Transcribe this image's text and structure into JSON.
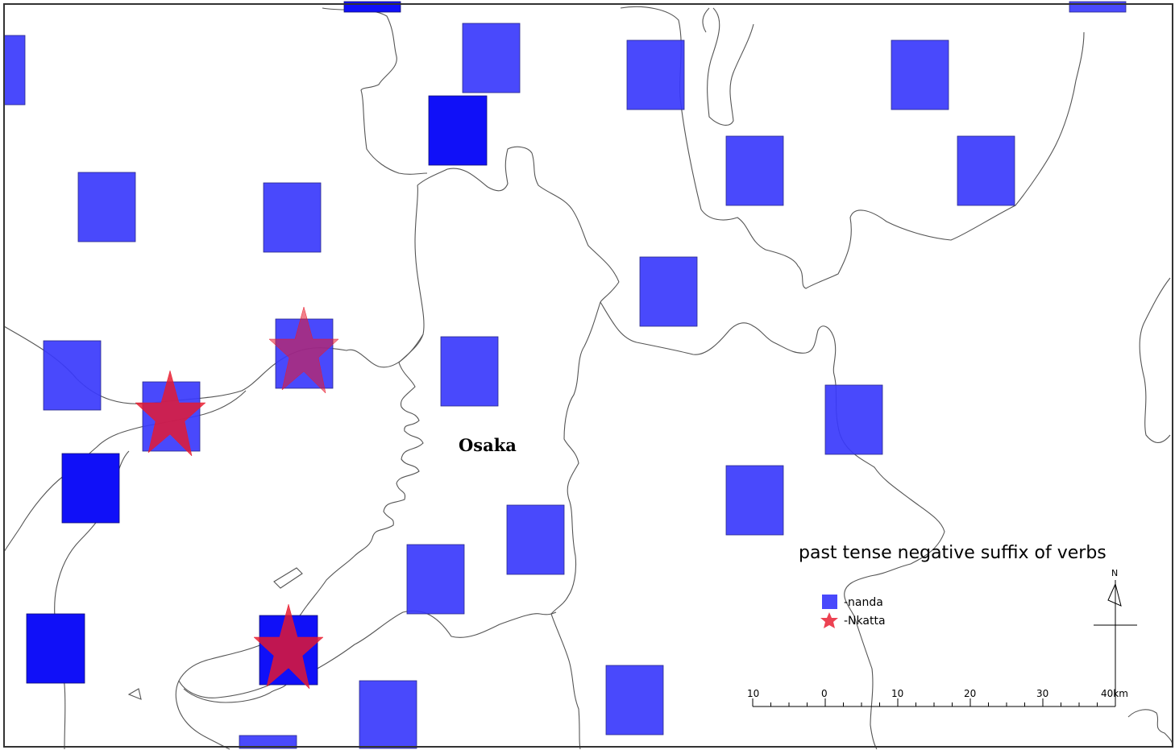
{
  "map": {
    "city_label": "Osaka",
    "legend": {
      "title": "past tense negative suffix of verbs",
      "items": [
        {
          "symbol": "square",
          "label": "-nanda",
          "color": "#3a3afc"
        },
        {
          "symbol": "star",
          "label": "-Nkatta",
          "color": "#e8192c"
        }
      ]
    },
    "scale_bar": {
      "labels": [
        "10",
        "0",
        "10",
        "20",
        "30",
        "40km"
      ]
    },
    "north_arrow": {
      "label": "N"
    },
    "colors": {
      "nanda_light": "#3a3afc",
      "nanda_dark": "#1010f8",
      "nkatta": "#e8192c",
      "coastline": "#555555"
    }
  }
}
